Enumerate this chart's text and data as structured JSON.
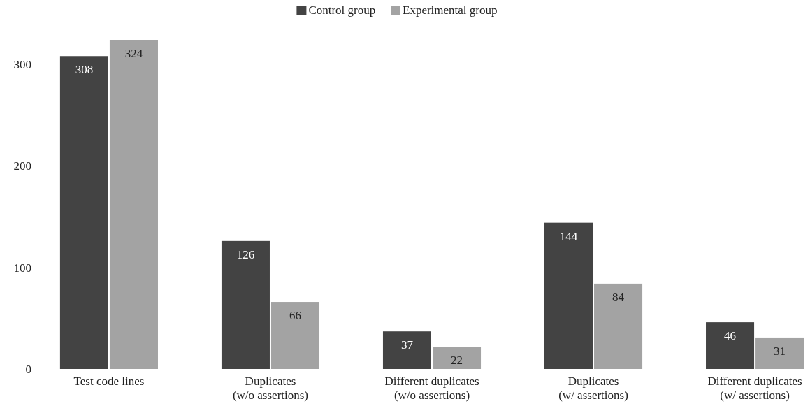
{
  "chart_data": {
    "type": "bar",
    "categories": [
      "Test code lines",
      "Duplicates\n(w/o assertions)",
      "Different duplicates\n(w/o assertions)",
      "Duplicates\n(w/ assertions)",
      "Different duplicates\n(w/ assertions)"
    ],
    "series": [
      {
        "name": "Control group",
        "color": "#434343",
        "values": [
          308,
          126,
          37,
          144,
          46
        ]
      },
      {
        "name": "Experimental group",
        "color": "#a3a3a3",
        "values": [
          324,
          66,
          22,
          84,
          31
        ]
      }
    ],
    "ylim": [
      0,
      324
    ],
    "yticks": [
      0,
      100,
      200,
      300
    ],
    "grid": false,
    "legend": "top",
    "data_labels": true
  }
}
